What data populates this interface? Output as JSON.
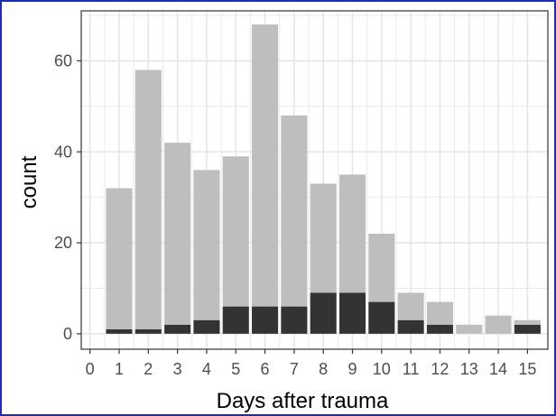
{
  "chart_data": {
    "type": "bar",
    "stacked": true,
    "x": [
      1,
      2,
      3,
      4,
      5,
      6,
      7,
      8,
      9,
      10,
      11,
      12,
      13,
      14,
      15
    ],
    "series": [
      {
        "values": [
          1,
          1,
          2,
          3,
          6,
          6,
          6,
          9,
          9,
          7,
          3,
          2,
          0,
          0,
          2
        ],
        "color": "#333333"
      },
      {
        "values": [
          31,
          57,
          40,
          33,
          33,
          62,
          42,
          24,
          26,
          15,
          6,
          5,
          2,
          4,
          1
        ],
        "color": "#bebebe"
      }
    ],
    "xlabel": "Days after trauma",
    "ylabel": "count",
    "xticks": [
      "0",
      "1",
      "2",
      "3",
      "4",
      "5",
      "6",
      "7",
      "8",
      "9",
      "10",
      "11",
      "12",
      "13",
      "14",
      "15"
    ],
    "yticks": [
      "0",
      "20",
      "40",
      "60"
    ],
    "xlim": [
      -0.3,
      15.7
    ],
    "ylim": [
      -3.4,
      71
    ],
    "grid": true,
    "panel_background": "#ffffff",
    "grid_color": "#e6e6e6"
  }
}
